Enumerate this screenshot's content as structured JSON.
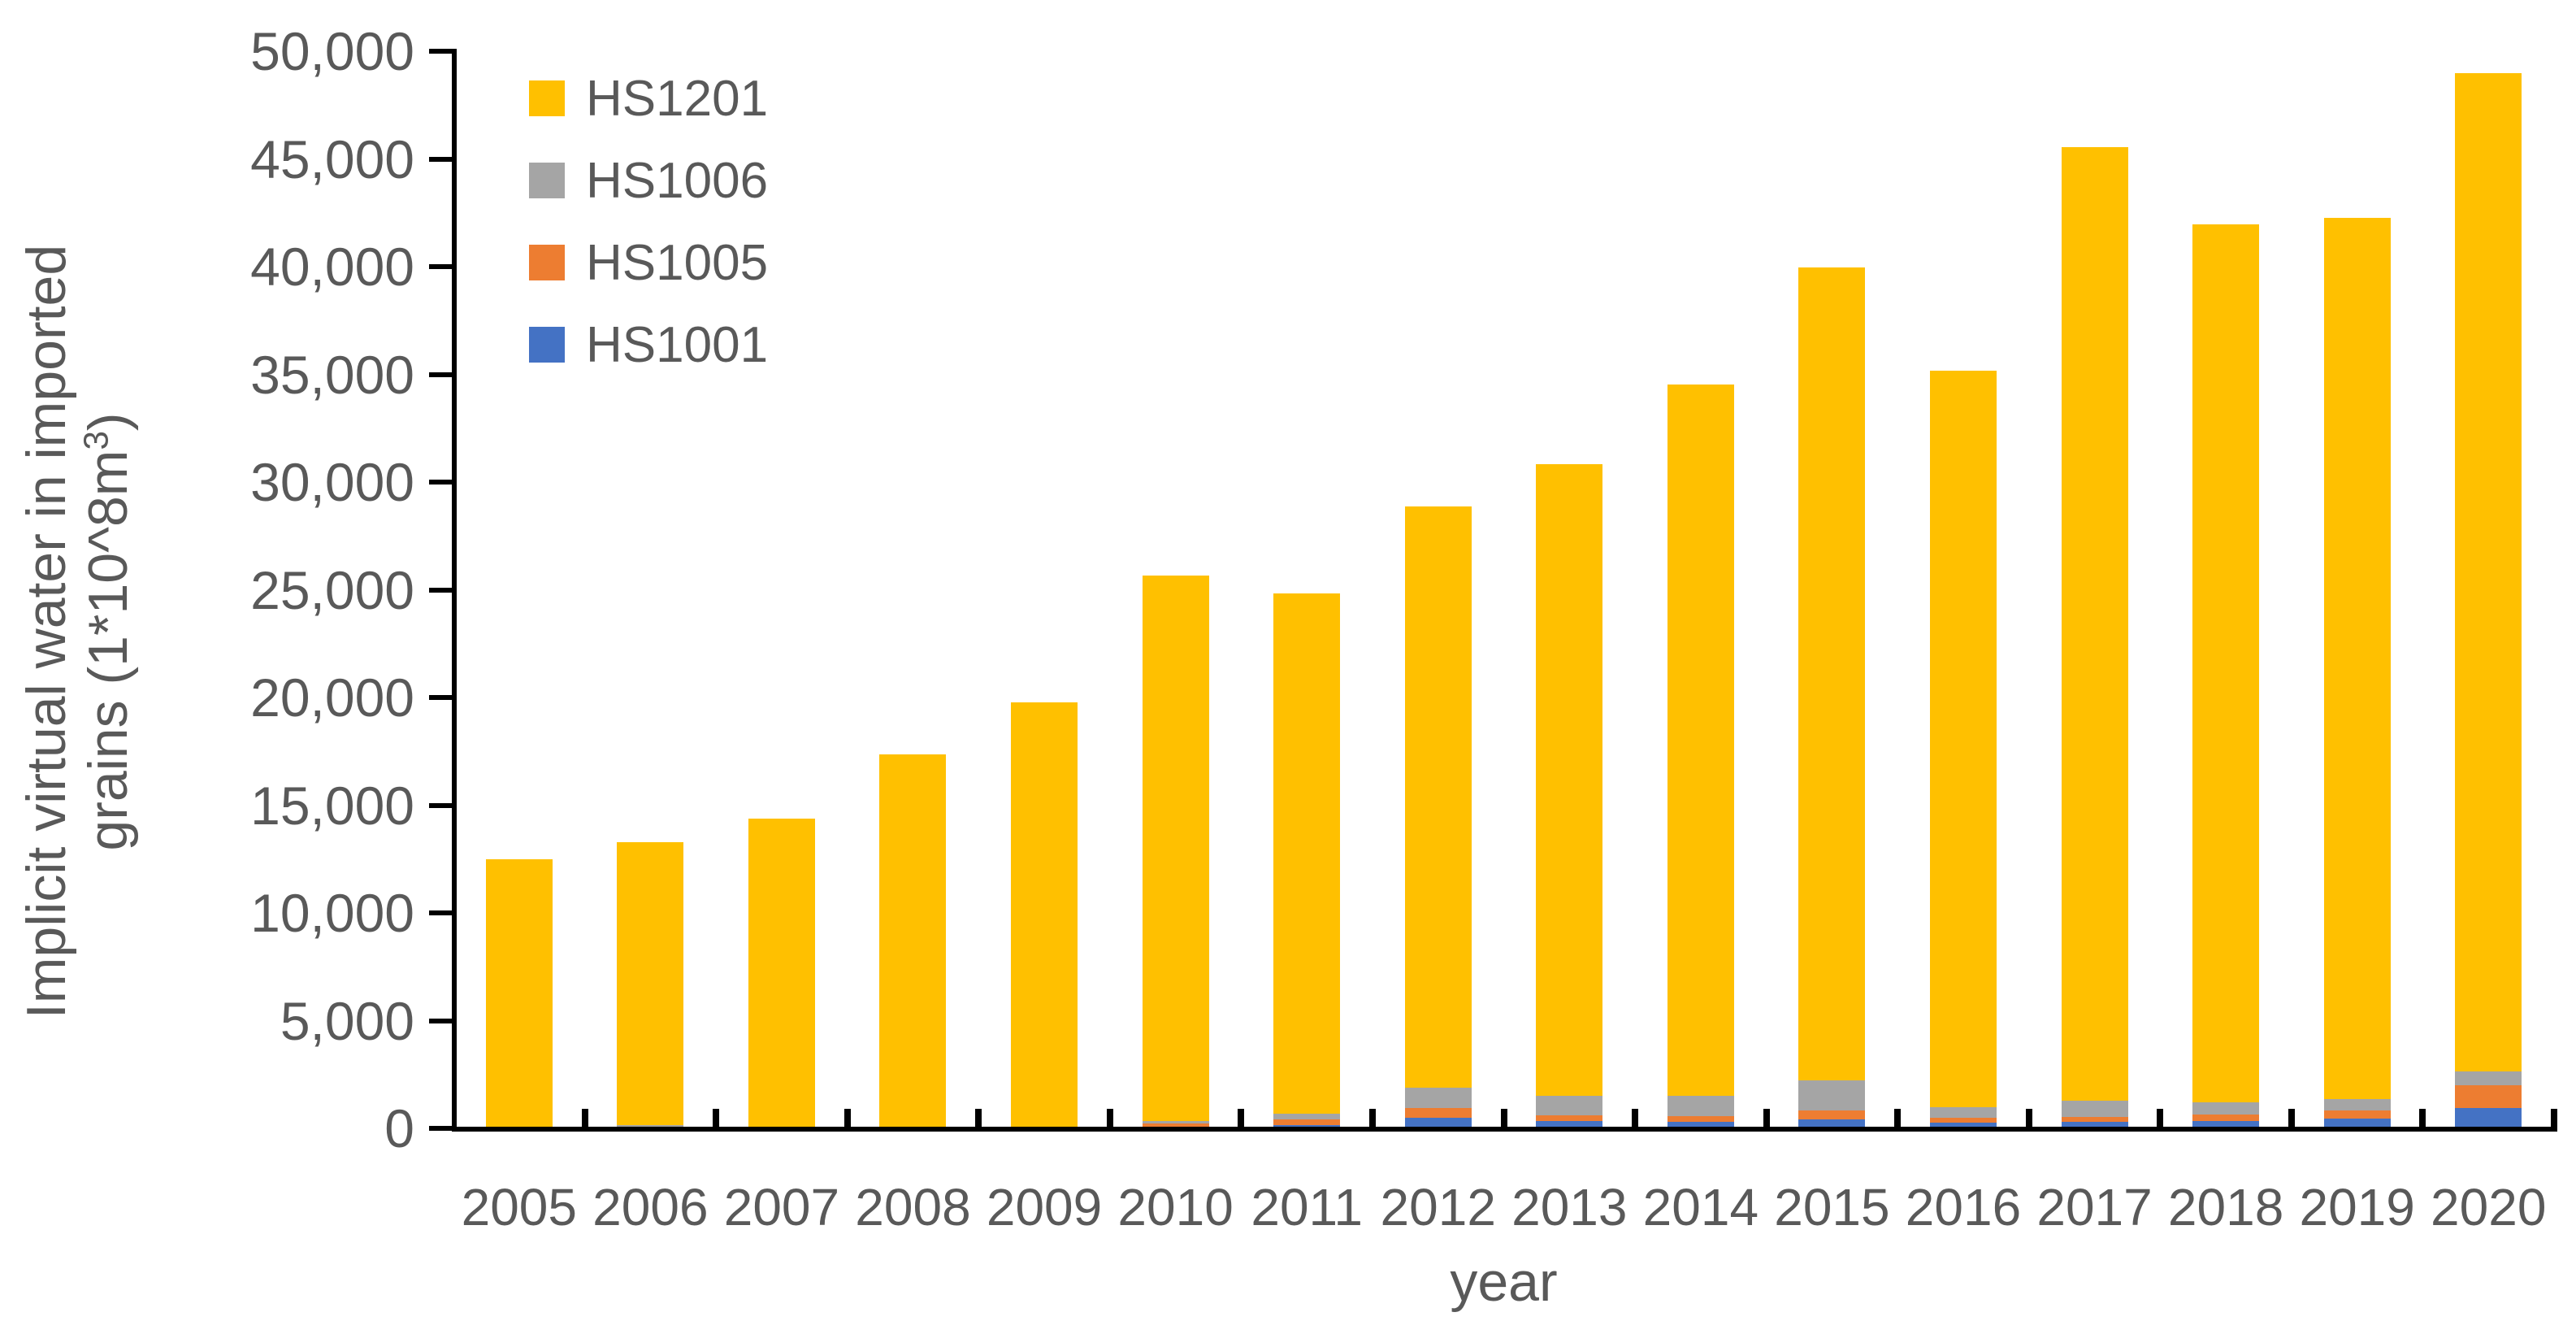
{
  "chart_data": {
    "type": "bar",
    "variant": "stacked-vertical",
    "title": "",
    "xlabel": "year",
    "ylabel_line1": "Implicit virtual water in imported",
    "ylabel_line2_base": "grains (1*10^8m",
    "ylabel_line2_sup": "3",
    "ylabel_line2_end": ")",
    "ylim": [
      0,
      50000
    ],
    "grid": false,
    "legend_position": "top-left-inside",
    "categories": [
      "2005",
      "2006",
      "2007",
      "2008",
      "2009",
      "2010",
      "2011",
      "2012",
      "2013",
      "2014",
      "2015",
      "2016",
      "2017",
      "2018",
      "2019",
      "2020"
    ],
    "y_ticks": [
      {
        "value": 0,
        "label": "0"
      },
      {
        "value": 5000,
        "label": "5,000"
      },
      {
        "value": 10000,
        "label": "10,000"
      },
      {
        "value": 15000,
        "label": "15,000"
      },
      {
        "value": 20000,
        "label": "20,000"
      },
      {
        "value": 25000,
        "label": "25,000"
      },
      {
        "value": 30000,
        "label": "30,000"
      },
      {
        "value": 35000,
        "label": "35,000"
      },
      {
        "value": 40000,
        "label": "40,000"
      },
      {
        "value": 45000,
        "label": "45,000"
      },
      {
        "value": 50000,
        "label": "50,000"
      }
    ],
    "series": [
      {
        "name": "HS1001",
        "color": "#4472C4",
        "values": [
          0,
          0,
          0,
          0,
          0,
          0,
          60,
          430,
          270,
          230,
          350,
          180,
          230,
          260,
          380,
          880
        ]
      },
      {
        "name": "HS1005",
        "color": "#ED7D31",
        "values": [
          0,
          0,
          0,
          0,
          0,
          150,
          270,
          430,
          270,
          280,
          420,
          250,
          230,
          290,
          380,
          1030
        ]
      },
      {
        "name": "HS1006",
        "color": "#A5A5A5",
        "values": [
          0,
          80,
          0,
          0,
          0,
          100,
          270,
          950,
          880,
          920,
          1400,
          470,
          760,
          570,
          530,
          660
        ]
      },
      {
        "name": "HS1201",
        "color": "#FFC000",
        "values": [
          12400,
          13120,
          14300,
          17300,
          19700,
          25350,
          24150,
          26990,
          29350,
          33020,
          37730,
          34200,
          44240,
          40780,
          40910,
          46330
        ]
      }
    ],
    "totals": [
      12400,
      13200,
      14300,
      17300,
      19700,
      25600,
      24750,
      28800,
      30770,
      34450,
      39900,
      35100,
      45460,
      41900,
      42200,
      48900
    ],
    "legend": [
      {
        "label": "HS1201",
        "color": "#FFC000"
      },
      {
        "label": "HS1006",
        "color": "#A5A5A5"
      },
      {
        "label": "HS1005",
        "color": "#ED7D31"
      },
      {
        "label": "HS1001",
        "color": "#4472C4"
      }
    ],
    "axis_color": "#000000",
    "text_color": "#595959"
  }
}
